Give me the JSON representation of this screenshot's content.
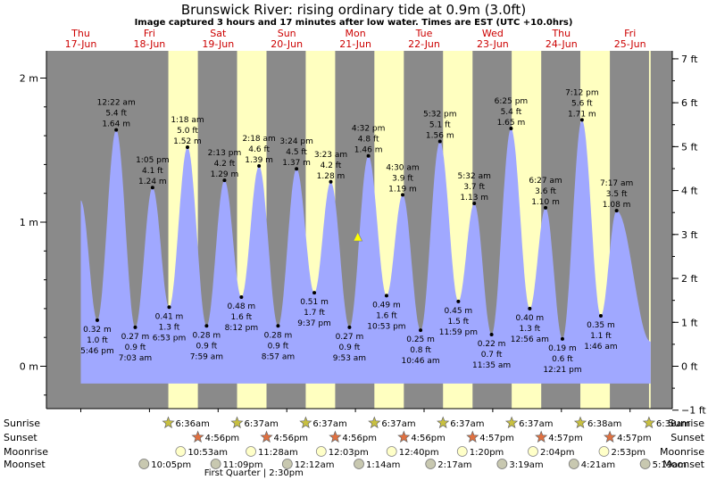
{
  "header": {
    "title": "Brunswick River: rising  ordinary tide at 0.9m (3.0ft)",
    "subtitle": "Image captured 3 hours and 17 minutes after low water. Times are EST (UTC +10.0hrs)"
  },
  "colors": {
    "night": "#8a8a8a",
    "day": "#ffffc0",
    "tide": "#a0a8ff",
    "date_text": "#cc0000",
    "current_marker": "#ffff00"
  },
  "chart_data": {
    "type": "area",
    "title": "Brunswick River: rising  ordinary tide at 0.9m (3.0ft)",
    "subtitle": "Image captured 3 hours and 17 minutes after low water. Times are EST (UTC +10.0hrs)",
    "x_unit": "day (0 = 17-Jun 00:00 EST)",
    "xlim": [
      0.0,
      8.3
    ],
    "ylim_m": [
      -0.25,
      2.2
    ],
    "ylim_ft": [
      -1,
      7
    ],
    "left_axis": {
      "ticks": [
        {
          "v": 0,
          "label": "0 m"
        },
        {
          "v": 1,
          "label": "1 m"
        },
        {
          "v": 2,
          "label": "2 m"
        }
      ]
    },
    "right_axis": {
      "ticks": [
        {
          "v": -1,
          "label": "−1 ft"
        },
        {
          "v": 0,
          "label": "0 ft"
        },
        {
          "v": 1,
          "label": "1 ft"
        },
        {
          "v": 2,
          "label": "2 ft"
        },
        {
          "v": 3,
          "label": "3 ft"
        },
        {
          "v": 4,
          "label": "4 ft"
        },
        {
          "v": 5,
          "label": "5 ft"
        },
        {
          "v": 6,
          "label": "6 ft"
        },
        {
          "v": 7,
          "label": "7 ft"
        }
      ]
    },
    "days": [
      {
        "dow": "Thu",
        "date": "17-Jun",
        "t": 0.0
      },
      {
        "dow": "Fri",
        "date": "18-Jun",
        "t": 1.0
      },
      {
        "dow": "Sat",
        "date": "19-Jun",
        "t": 2.0
      },
      {
        "dow": "Sun",
        "date": "20-Jun",
        "t": 3.0
      },
      {
        "dow": "Mon",
        "date": "21-Jun",
        "t": 4.0
      },
      {
        "dow": "Tue",
        "date": "22-Jun",
        "t": 5.0
      },
      {
        "dow": "Wed",
        "date": "23-Jun",
        "t": 6.0
      },
      {
        "dow": "Thu",
        "date": "24-Jun",
        "t": 7.0
      },
      {
        "dow": "Fri",
        "date": "25-Jun",
        "t": 8.0
      }
    ],
    "daylight": [
      {
        "rise": 1.275,
        "set": 1.705
      },
      {
        "rise": 2.276,
        "set": 2.705
      },
      {
        "rise": 3.276,
        "set": 3.705
      },
      {
        "rise": 4.276,
        "set": 4.705
      },
      {
        "rise": 5.276,
        "set": 5.706
      },
      {
        "rise": 6.276,
        "set": 6.706
      },
      {
        "rise": 7.276,
        "set": 7.706
      },
      {
        "rise": 8.276,
        "set": 8.3
      }
    ],
    "tide_curve_start": {
      "t": 0.0,
      "m": 1.15
    },
    "tide_curve_end": {
      "t": 8.3,
      "m": 0.17
    },
    "extremes": [
      {
        "t": 0.24,
        "m": 0.32,
        "lines": [
          "0.32 m",
          "1.0 ft",
          "5:46 pm"
        ],
        "kind": "low"
      },
      {
        "t": 0.516,
        "m": 1.64,
        "lines": [
          "12:22 am",
          "5.4 ft",
          "1.64 m"
        ],
        "kind": "high"
      },
      {
        "t": 0.793,
        "m": 0.27,
        "lines": [
          "0.27 m",
          "0.9 ft",
          "7:03 am"
        ],
        "kind": "low"
      },
      {
        "t": 1.045,
        "m": 1.24,
        "lines": [
          "1:05 pm",
          "4.1 ft",
          "1.24 m"
        ],
        "kind": "high"
      },
      {
        "t": 1.287,
        "m": 0.41,
        "lines": [
          "0.41 m",
          "1.3 ft",
          "6:53 pm"
        ],
        "kind": "low"
      },
      {
        "t": 1.554,
        "m": 1.52,
        "lines": [
          "1:18 am",
          "5.0 ft",
          "1.52 m"
        ],
        "kind": "high"
      },
      {
        "t": 1.832,
        "m": 0.28,
        "lines": [
          "0.28 m",
          "0.9 ft",
          "7:59 am"
        ],
        "kind": "low"
      },
      {
        "t": 2.093,
        "m": 1.29,
        "lines": [
          "2:13 pm",
          "4.2 ft",
          "1.29 m"
        ],
        "kind": "high"
      },
      {
        "t": 2.339,
        "m": 0.48,
        "lines": [
          "0.48 m",
          "1.6 ft",
          "8:12 pm"
        ],
        "kind": "low"
      },
      {
        "t": 2.596,
        "m": 1.39,
        "lines": [
          "2:18 am",
          "4.6 ft",
          "1.39 m"
        ],
        "kind": "high"
      },
      {
        "t": 2.873,
        "m": 0.28,
        "lines": [
          "0.28 m",
          "0.9 ft",
          "8:57 am"
        ],
        "kind": "low"
      },
      {
        "t": 3.142,
        "m": 1.37,
        "lines": [
          "3:24 pm",
          "4.5 ft",
          "1.37 m"
        ],
        "kind": "high"
      },
      {
        "t": 3.401,
        "m": 0.51,
        "lines": [
          "0.51 m",
          "1.7 ft",
          "9:37 pm"
        ],
        "kind": "low"
      },
      {
        "t": 3.641,
        "m": 1.28,
        "lines": [
          "3:23 am",
          "4.2 ft",
          "1.28 m"
        ],
        "kind": "high"
      },
      {
        "t": 3.913,
        "m": 0.27,
        "lines": [
          "0.27 m",
          "0.9 ft",
          "9:53 am"
        ],
        "kind": "low"
      },
      {
        "t": 4.189,
        "m": 1.46,
        "lines": [
          "4:32 pm",
          "4.8 ft",
          "1.46 m"
        ],
        "kind": "high"
      },
      {
        "t": 4.453,
        "m": 0.49,
        "lines": [
          "0.49 m",
          "1.6 ft",
          "10:53 pm"
        ],
        "kind": "low"
      },
      {
        "t": 4.688,
        "m": 1.19,
        "lines": [
          "4:30 am",
          "3.9 ft",
          "1.19 m"
        ],
        "kind": "high"
      },
      {
        "t": 4.949,
        "m": 0.25,
        "lines": [
          "0.25 m",
          "0.8 ft",
          "10:46 am"
        ],
        "kind": "low"
      },
      {
        "t": 5.231,
        "m": 1.56,
        "lines": [
          "5:32 pm",
          "5.1 ft",
          "1.56 m"
        ],
        "kind": "high"
      },
      {
        "t": 5.499,
        "m": 0.45,
        "lines": [
          "0.45 m",
          "1.5 ft",
          "11:59 pm"
        ],
        "kind": "low"
      },
      {
        "t": 5.731,
        "m": 1.13,
        "lines": [
          "5:32 am",
          "3.7 ft",
          "1.13 m"
        ],
        "kind": "high"
      },
      {
        "t": 5.983,
        "m": 0.22,
        "lines": [
          "0.22 m",
          "0.7 ft",
          "11:35 am"
        ],
        "kind": "low"
      },
      {
        "t": 6.267,
        "m": 1.65,
        "lines": [
          "6:25 pm",
          "5.4 ft",
          "1.65 m"
        ],
        "kind": "high"
      },
      {
        "t": 6.539,
        "m": 0.4,
        "lines": [
          "0.40 m",
          "1.3 ft",
          "12:56 am"
        ],
        "kind": "low"
      },
      {
        "t": 6.769,
        "m": 1.1,
        "lines": [
          "6:27 am",
          "3.6 ft",
          "1.10 m"
        ],
        "kind": "high"
      },
      {
        "t": 7.015,
        "m": 0.19,
        "lines": [
          "0.19 m",
          "0.6 ft",
          "12:21 pm"
        ],
        "kind": "low"
      },
      {
        "t": 7.3,
        "m": 1.71,
        "lines": [
          "7:12 pm",
          "5.6 ft",
          "1.71 m"
        ],
        "kind": "high"
      },
      {
        "t": 7.574,
        "m": 0.35,
        "lines": [
          "0.35 m",
          "1.1 ft",
          "1:46 am"
        ],
        "kind": "low"
      },
      {
        "t": 7.804,
        "m": 1.08,
        "lines": [
          "7:17 am",
          "3.5 ft",
          "1.08 m"
        ],
        "kind": "high"
      }
    ],
    "current": {
      "t": 4.034,
      "m": 0.9
    }
  },
  "bottom": {
    "rows": [
      {
        "label": "Sunrise",
        "kind": "sunrise"
      },
      {
        "label": "Sunset",
        "kind": "sunset"
      },
      {
        "label": "Moonrise",
        "kind": "moonrise"
      },
      {
        "label": "Moonset",
        "kind": "moonset"
      }
    ],
    "sunrise": [
      {
        "t": 1.275,
        "text": "6:36am"
      },
      {
        "t": 2.276,
        "text": "6:37am"
      },
      {
        "t": 3.276,
        "text": "6:37am"
      },
      {
        "t": 4.276,
        "text": "6:37am"
      },
      {
        "t": 5.276,
        "text": "6:37am"
      },
      {
        "t": 6.276,
        "text": "6:37am"
      },
      {
        "t": 7.276,
        "text": "6:38am"
      },
      {
        "t": 8.276,
        "text": "6:38am"
      }
    ],
    "sunset": [
      {
        "t": 1.705,
        "text": "4:56pm"
      },
      {
        "t": 2.705,
        "text": "4:56pm"
      },
      {
        "t": 3.705,
        "text": "4:56pm"
      },
      {
        "t": 4.705,
        "text": "4:56pm"
      },
      {
        "t": 5.706,
        "text": "4:57pm"
      },
      {
        "t": 6.706,
        "text": "4:57pm"
      },
      {
        "t": 7.706,
        "text": "4:57pm"
      }
    ],
    "moonrise": [
      {
        "t": 1.454,
        "text": "10:53am"
      },
      {
        "t": 2.478,
        "text": "11:28am"
      },
      {
        "t": 3.502,
        "text": "12:03pm"
      },
      {
        "t": 4.528,
        "text": "12:40pm"
      },
      {
        "t": 5.556,
        "text": "1:20pm"
      },
      {
        "t": 6.586,
        "text": "2:04pm"
      },
      {
        "t": 7.62,
        "text": "2:53pm"
      }
    ],
    "moonset": [
      {
        "t": 0.92,
        "text": "10:05pm"
      },
      {
        "t": 1.965,
        "text": "11:09pm"
      },
      {
        "t": 3.008,
        "text": "12:12am"
      },
      {
        "t": 4.051,
        "text": "1:14am"
      },
      {
        "t": 5.094,
        "text": "2:17am"
      },
      {
        "t": 6.136,
        "text": "3:19am"
      },
      {
        "t": 7.182,
        "text": "4:21am"
      },
      {
        "t": 8.22,
        "text": "5:19am"
      }
    ],
    "moon_phase": {
      "t": 2.52,
      "text": "First Quarter | 2:30pm"
    }
  }
}
